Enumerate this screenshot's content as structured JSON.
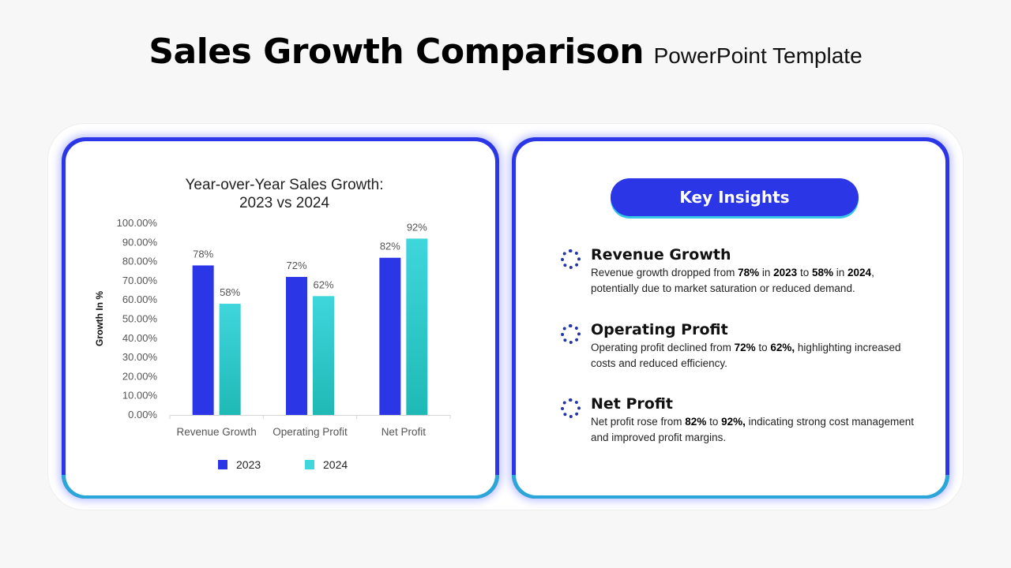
{
  "title": {
    "main": "Sales Growth Comparison",
    "sub": "PowerPoint Template"
  },
  "colors": {
    "brand_blue": "#2b37e6",
    "teal": "#3fd6dc",
    "teal_dark": "#1fb9b5",
    "accent_bottom": "#2aa7d8"
  },
  "chart_data": {
    "type": "bar",
    "title_line1": "Year-over-Year Sales Growth:",
    "title_line2": "2023 vs 2024",
    "ylabel": "Growth In %",
    "xlabel": "",
    "ylim": [
      0,
      100
    ],
    "yticks": [
      "0.00%",
      "10.00%",
      "20.00%",
      "30.00%",
      "40.00%",
      "50.00%",
      "60.00%",
      "70.00%",
      "80.00%",
      "90.00%",
      "100.00%"
    ],
    "categories": [
      "Revenue Growth",
      "Operating Profit",
      "Net Profit"
    ],
    "series": [
      {
        "name": "2023",
        "values": [
          78,
          72,
          82
        ],
        "labels": [
          "78%",
          "72%",
          "82%"
        ],
        "color": "#2b37e6"
      },
      {
        "name": "2024",
        "values": [
          58,
          62,
          92
        ],
        "labels": [
          "58%",
          "62%",
          "92%"
        ],
        "color": "#3fd6dc"
      }
    ],
    "grid": false,
    "legend": "bottom"
  },
  "insights": {
    "heading": "Key Insights",
    "items": [
      {
        "title": "Revenue Growth",
        "parts": [
          [
            "Revenue growth dropped from ",
            false
          ],
          [
            "78%",
            true
          ],
          [
            " in ",
            false
          ],
          [
            "2023",
            true
          ],
          [
            " to ",
            false
          ],
          [
            "58%",
            true
          ],
          [
            " in ",
            false
          ],
          [
            "2024",
            true
          ],
          [
            ", potentially due to market saturation or reduced demand.",
            false
          ]
        ]
      },
      {
        "title": "Operating Profit",
        "parts": [
          [
            "Operating profit declined from ",
            false
          ],
          [
            "72%",
            true
          ],
          [
            " to ",
            false
          ],
          [
            "62%,",
            true
          ],
          [
            " highlighting increased costs and reduced efficiency.",
            false
          ]
        ]
      },
      {
        "title": "Net Profit",
        "parts": [
          [
            "Net profit rose from ",
            false
          ],
          [
            "82%",
            true
          ],
          [
            " to ",
            false
          ],
          [
            "92%,",
            true
          ],
          [
            " indicating strong cost management and improved profit margins.",
            false
          ]
        ]
      }
    ]
  }
}
